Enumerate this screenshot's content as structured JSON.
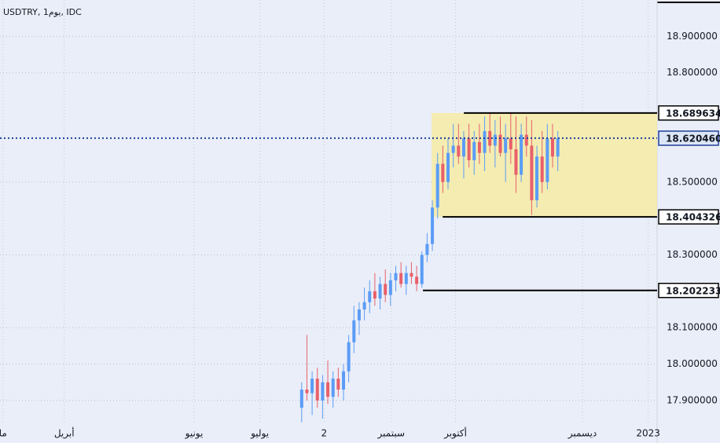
{
  "chart_data": {
    "type": "candlestick",
    "title": "USDTRY, 1يوم, IDC",
    "up_color": "#5b9cf6",
    "down_color": "#e8606b",
    "grid": true,
    "xlim": [
      0,
      220
    ],
    "ylim": [
      17.835,
      19.0
    ],
    "xticks": [
      {
        "value": 1,
        "label": "ما"
      },
      {
        "value": 21.5,
        "label": "أبريل"
      },
      {
        "value": 65,
        "label": "يونيو"
      },
      {
        "value": 87,
        "label": "يوليو"
      },
      {
        "value": 108.5,
        "label": "2"
      },
      {
        "value": 131,
        "label": "سبتمبر"
      },
      {
        "value": 152.5,
        "label": "أكتوبر"
      },
      {
        "value": 195,
        "label": "ديسمبر"
      },
      {
        "value": 217,
        "label": "2023"
      }
    ],
    "yticks": [
      {
        "value": 17.9,
        "label": "17.900000"
      },
      {
        "value": 18.0,
        "label": "18.000000"
      },
      {
        "value": 18.1,
        "label": "18.100000"
      },
      {
        "value": 18.3,
        "label": "18.300000"
      },
      {
        "value": 18.5,
        "label": "18.500000"
      },
      {
        "value": 18.8,
        "label": "18.800000"
      },
      {
        "value": 18.9,
        "label": "18.900000"
      }
    ],
    "levels": [
      {
        "value": 18.689634,
        "start": 155.3
      },
      {
        "value": 18.404326,
        "start": 148.2
      },
      {
        "value": 18.202233,
        "start": 141.6
      }
    ],
    "zone_start": 144.5,
    "price": {
      "value": 18.62046,
      "label": "18.620460"
    },
    "candles": [
      {
        "x": 101,
        "o": 17.88,
        "h": 17.95,
        "l": 17.84,
        "c": 17.93
      },
      {
        "x": 102.75,
        "o": 17.93,
        "h": 18.08,
        "l": 17.9,
        "c": 17.92
      },
      {
        "x": 104.5,
        "o": 17.92,
        "h": 17.98,
        "l": 17.86,
        "c": 17.96
      },
      {
        "x": 106.25,
        "o": 17.96,
        "h": 17.99,
        "l": 17.88,
        "c": 17.9
      },
      {
        "x": 108,
        "o": 17.9,
        "h": 17.97,
        "l": 17.85,
        "c": 17.95
      },
      {
        "x": 109.75,
        "o": 17.95,
        "h": 18.01,
        "l": 17.89,
        "c": 17.91
      },
      {
        "x": 111.5,
        "o": 17.91,
        "h": 17.98,
        "l": 17.88,
        "c": 17.96
      },
      {
        "x": 113.25,
        "o": 17.96,
        "h": 17.99,
        "l": 17.91,
        "c": 17.93
      },
      {
        "x": 115,
        "o": 17.93,
        "h": 18.0,
        "l": 17.9,
        "c": 17.98
      },
      {
        "x": 116.75,
        "o": 17.98,
        "h": 18.08,
        "l": 17.95,
        "c": 18.06
      },
      {
        "x": 118.5,
        "o": 18.06,
        "h": 18.16,
        "l": 18.03,
        "c": 18.12
      },
      {
        "x": 120.25,
        "o": 18.12,
        "h": 18.17,
        "l": 18.08,
        "c": 18.15
      },
      {
        "x": 122,
        "o": 18.15,
        "h": 18.21,
        "l": 18.12,
        "c": 18.17
      },
      {
        "x": 123.75,
        "o": 18.17,
        "h": 18.23,
        "l": 18.14,
        "c": 18.2
      },
      {
        "x": 125.5,
        "o": 18.2,
        "h": 18.25,
        "l": 18.16,
        "c": 18.18
      },
      {
        "x": 127.25,
        "o": 18.18,
        "h": 18.24,
        "l": 18.15,
        "c": 18.22
      },
      {
        "x": 129,
        "o": 18.22,
        "h": 18.26,
        "l": 18.17,
        "c": 18.19
      },
      {
        "x": 130.75,
        "o": 18.19,
        "h": 18.25,
        "l": 18.16,
        "c": 18.23
      },
      {
        "x": 132.5,
        "o": 18.23,
        "h": 18.27,
        "l": 18.2,
        "c": 18.25
      },
      {
        "x": 134.25,
        "o": 18.25,
        "h": 18.28,
        "l": 18.21,
        "c": 18.22
      },
      {
        "x": 136,
        "o": 18.22,
        "h": 18.27,
        "l": 18.19,
        "c": 18.25
      },
      {
        "x": 137.75,
        "o": 18.25,
        "h": 18.28,
        "l": 18.22,
        "c": 18.24
      },
      {
        "x": 139.5,
        "o": 18.24,
        "h": 18.27,
        "l": 18.2,
        "c": 18.22
      },
      {
        "x": 141.25,
        "o": 18.22,
        "h": 18.31,
        "l": 18.21,
        "c": 18.3
      },
      {
        "x": 143,
        "o": 18.3,
        "h": 18.36,
        "l": 18.28,
        "c": 18.33
      },
      {
        "x": 144.75,
        "o": 18.33,
        "h": 18.45,
        "l": 18.31,
        "c": 18.43
      },
      {
        "x": 146.5,
        "o": 18.43,
        "h": 18.58,
        "l": 18.4,
        "c": 18.55
      },
      {
        "x": 148.25,
        "o": 18.55,
        "h": 18.6,
        "l": 18.47,
        "c": 18.5
      },
      {
        "x": 150,
        "o": 18.5,
        "h": 18.62,
        "l": 18.48,
        "c": 18.58
      },
      {
        "x": 151.75,
        "o": 18.58,
        "h": 18.66,
        "l": 18.54,
        "c": 18.6
      },
      {
        "x": 153.5,
        "o": 18.6,
        "h": 18.66,
        "l": 18.55,
        "c": 18.57
      },
      {
        "x": 155.25,
        "o": 18.57,
        "h": 18.64,
        "l": 18.51,
        "c": 18.62
      },
      {
        "x": 157,
        "o": 18.62,
        "h": 18.66,
        "l": 18.54,
        "c": 18.56
      },
      {
        "x": 158.75,
        "o": 18.56,
        "h": 18.64,
        "l": 18.52,
        "c": 18.61
      },
      {
        "x": 160.5,
        "o": 18.61,
        "h": 18.66,
        "l": 18.55,
        "c": 18.58
      },
      {
        "x": 162.25,
        "o": 18.58,
        "h": 18.68,
        "l": 18.53,
        "c": 18.64
      },
      {
        "x": 164,
        "o": 18.64,
        "h": 18.69,
        "l": 18.58,
        "c": 18.6
      },
      {
        "x": 165.75,
        "o": 18.6,
        "h": 18.67,
        "l": 18.54,
        "c": 18.63
      },
      {
        "x": 167.5,
        "o": 18.63,
        "h": 18.68,
        "l": 18.57,
        "c": 18.58
      },
      {
        "x": 169.25,
        "o": 18.58,
        "h": 18.66,
        "l": 18.5,
        "c": 18.62
      },
      {
        "x": 171,
        "o": 18.62,
        "h": 18.69,
        "l": 18.55,
        "c": 18.59
      },
      {
        "x": 172.75,
        "o": 18.59,
        "h": 18.68,
        "l": 18.47,
        "c": 18.52
      },
      {
        "x": 174.5,
        "o": 18.52,
        "h": 18.66,
        "l": 18.5,
        "c": 18.63
      },
      {
        "x": 176.25,
        "o": 18.63,
        "h": 18.68,
        "l": 18.57,
        "c": 18.6
      },
      {
        "x": 178,
        "o": 18.6,
        "h": 18.67,
        "l": 18.41,
        "c": 18.45
      },
      {
        "x": 179.75,
        "o": 18.45,
        "h": 18.6,
        "l": 18.43,
        "c": 18.57
      },
      {
        "x": 181.5,
        "o": 18.57,
        "h": 18.64,
        "l": 18.47,
        "c": 18.5
      },
      {
        "x": 183.25,
        "o": 18.5,
        "h": 18.66,
        "l": 18.48,
        "c": 18.62
      },
      {
        "x": 185,
        "o": 18.62,
        "h": 18.66,
        "l": 18.54,
        "c": 18.57
      },
      {
        "x": 186.75,
        "o": 18.57,
        "h": 18.64,
        "l": 18.53,
        "c": 18.62
      }
    ]
  }
}
